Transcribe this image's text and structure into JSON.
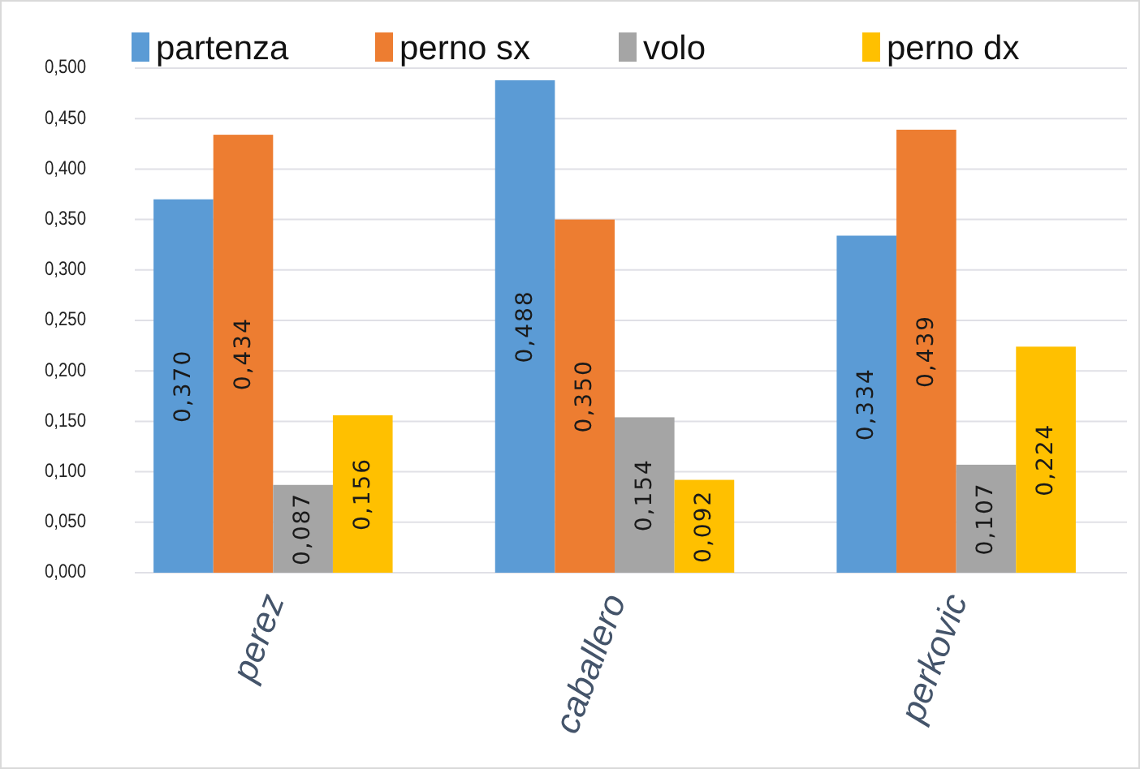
{
  "chart_data": {
    "type": "bar",
    "categories": [
      "perez",
      "caballero",
      "perkovic"
    ],
    "series": [
      {
        "name": "partenza",
        "color": "#5b9bd5",
        "values": [
          0.37,
          0.488,
          0.334
        ],
        "value_labels": [
          "0,370",
          "0,488",
          "0,334"
        ]
      },
      {
        "name": "perno sx",
        "color": "#ed7d31",
        "values": [
          0.434,
          0.35,
          0.439
        ],
        "value_labels": [
          "0,434",
          "0,350",
          "0,439"
        ]
      },
      {
        "name": "volo",
        "color": "#a5a5a5",
        "values": [
          0.087,
          0.154,
          0.107
        ],
        "value_labels": [
          "0,087",
          "0,154",
          "0,107"
        ]
      },
      {
        "name": "perno dx",
        "color": "#ffc000",
        "values": [
          0.156,
          0.092,
          0.224
        ],
        "value_labels": [
          "0,156",
          "0,092",
          "0,224"
        ]
      }
    ],
    "ylim": [
      0,
      0.5
    ],
    "yticks": [
      {
        "value": 0,
        "label": "0,000"
      },
      {
        "value": 0.05,
        "label": "0,050"
      },
      {
        "value": 0.1,
        "label": "0,100"
      },
      {
        "value": 0.15,
        "label": "0,150"
      },
      {
        "value": 0.2,
        "label": "0,200"
      },
      {
        "value": 0.25,
        "label": "0,250"
      },
      {
        "value": 0.3,
        "label": "0,300"
      },
      {
        "value": 0.35,
        "label": "0,350"
      },
      {
        "value": 0.4,
        "label": "0,400"
      },
      {
        "value": 0.45,
        "label": "0,450"
      },
      {
        "value": 0.5,
        "label": "0,500"
      }
    ],
    "grid": "y",
    "legend": "top"
  }
}
